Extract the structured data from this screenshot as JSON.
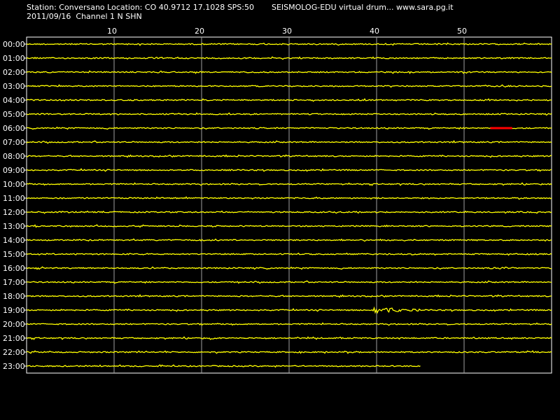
{
  "header": {
    "station_line": "Station: Conversano Location: CO 40.9712 17.1028 SPS:50",
    "date_line": "2011/09/16  Channel 1 N SHN",
    "app_line": "SEISMOLOG-EDU virtual drum... www.sara.pg.it"
  },
  "chart_data": {
    "type": "line",
    "title": "",
    "x_ticks": [
      10,
      20,
      30,
      40,
      50
    ],
    "xlim": [
      0,
      60
    ],
    "x_unit": "minutes",
    "grid": true,
    "trace_end": {
      "row": "23:00",
      "minute": 45
    },
    "rows": [
      "00:00",
      "01:00",
      "02:00",
      "03:00",
      "04:00",
      "05:00",
      "06:00",
      "07:00",
      "08:00",
      "09:00",
      "10:00",
      "11:00",
      "12:00",
      "13:00",
      "14:00",
      "15:00",
      "16:00",
      "17:00",
      "18:00",
      "19:00",
      "20:00",
      "21:00",
      "22:00",
      "23:00"
    ],
    "events": [
      {
        "row": "06:00",
        "start_min": 53,
        "end_min": 55.5,
        "color": "#ff0000",
        "amplitude": 1
      },
      {
        "row": "16:00",
        "start_min": 53.5,
        "end_min": 58.5,
        "color": "#ffff00",
        "amplitude": 2
      },
      {
        "row": "19:00",
        "start_min": 39.5,
        "end_min": 45,
        "color": "#ffff00",
        "amplitude": 5
      },
      {
        "row": "21:00",
        "start_min": 21,
        "end_min": 23,
        "color": "#ffff00",
        "amplitude": 2
      }
    ],
    "colors": {
      "trace": "#ffff00",
      "grid": "#a0a0a0",
      "background": "#000000",
      "axis": "#ffffff"
    }
  }
}
